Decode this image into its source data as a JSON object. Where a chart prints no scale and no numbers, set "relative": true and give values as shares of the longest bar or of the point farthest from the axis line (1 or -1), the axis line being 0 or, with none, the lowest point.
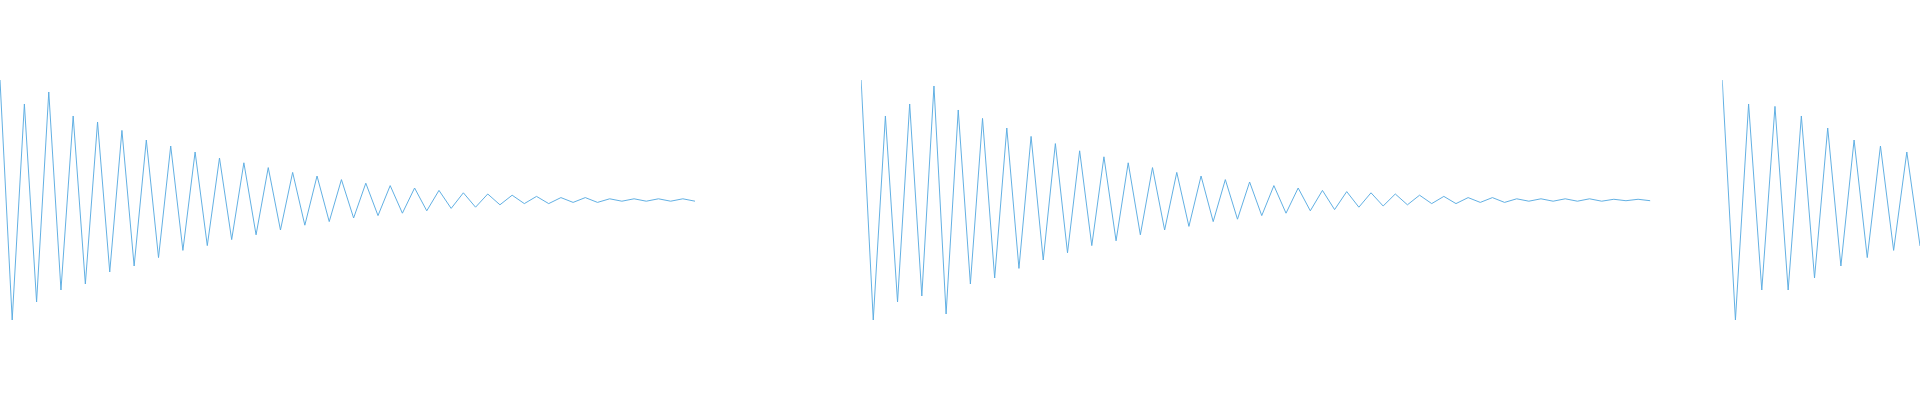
{
  "chart_data": [
    {
      "type": "line",
      "relative": true,
      "categories": [
        null,
        null,
        null,
        null,
        null,
        null,
        null,
        null,
        null,
        null,
        null,
        null,
        null,
        null,
        null,
        null,
        null,
        null,
        null,
        null,
        null,
        null,
        null,
        null,
        null,
        null,
        null,
        null,
        null,
        null,
        null,
        null,
        null,
        null,
        null,
        null,
        null,
        null,
        null,
        null,
        null,
        null,
        null,
        null,
        null,
        null,
        null,
        null,
        null,
        null,
        null,
        null,
        null,
        null,
        null,
        null,
        null,
        null
      ],
      "series": [
        {
          "color": "#5dade2",
          "values": [
            1,
            0,
            0.9,
            0.075,
            0.95,
            0.125,
            0.85,
            0.15,
            0.825,
            0.2,
            0.79,
            0.225,
            0.75,
            0.26,
            0.725,
            0.29,
            0.7,
            0.31,
            0.675,
            0.335,
            0.655,
            0.355,
            0.635,
            0.375,
            0.615,
            0.395,
            0.6,
            0.41,
            0.585,
            0.425,
            0.57,
            0.435,
            0.56,
            0.445,
            0.55,
            0.455,
            0.54,
            0.465,
            0.53,
            0.47,
            0.525,
            0.48,
            0.52,
            0.485,
            0.515,
            0.485,
            0.51,
            0.49,
            0.51,
            0.49,
            0.505,
            0.495,
            0.505,
            0.495,
            0.505,
            0.495,
            0.505,
            0.495
          ]
        }
      ]
    },
    {
      "type": "line",
      "relative": true,
      "categories": [
        null,
        null,
        null,
        null,
        null,
        null,
        null,
        null,
        null,
        null,
        null,
        null,
        null,
        null,
        null,
        null,
        null,
        null,
        null,
        null,
        null,
        null,
        null,
        null,
        null,
        null,
        null,
        null,
        null,
        null,
        null,
        null,
        null,
        null,
        null,
        null,
        null,
        null,
        null,
        null,
        null,
        null,
        null,
        null,
        null,
        null,
        null,
        null,
        null,
        null,
        null,
        null,
        null,
        null,
        null,
        null,
        null,
        null,
        null,
        null,
        null,
        null,
        null,
        null,
        null,
        null
      ],
      "series": [
        {
          "color": "#5dade2",
          "values": [
            1,
            0,
            0.85,
            0.075,
            0.9,
            0.1,
            0.975,
            0.025,
            0.875,
            0.15,
            0.84,
            0.175,
            0.8,
            0.215,
            0.765,
            0.25,
            0.735,
            0.28,
            0.705,
            0.31,
            0.68,
            0.33,
            0.655,
            0.355,
            0.635,
            0.375,
            0.615,
            0.39,
            0.6,
            0.41,
            0.585,
            0.42,
            0.575,
            0.435,
            0.56,
            0.445,
            0.55,
            0.455,
            0.54,
            0.46,
            0.535,
            0.47,
            0.53,
            0.475,
            0.525,
            0.48,
            0.52,
            0.485,
            0.515,
            0.485,
            0.51,
            0.49,
            0.51,
            0.49,
            0.505,
            0.495,
            0.505,
            0.495,
            0.505,
            0.495,
            0.505,
            0.495,
            0.503,
            0.497,
            0.503,
            0.497
          ]
        }
      ]
    },
    {
      "type": "line",
      "relative": true,
      "categories": [
        null,
        null,
        null,
        null,
        null,
        null,
        null,
        null,
        null,
        null,
        null,
        null,
        null,
        null,
        null,
        null
      ],
      "series": [
        {
          "color": "#5dade2",
          "values": [
            1,
            0,
            0.9,
            0.125,
            0.89,
            0.125,
            0.85,
            0.175,
            0.8,
            0.225,
            0.75,
            0.26,
            0.725,
            0.29,
            0.7,
            0.31
          ]
        }
      ]
    }
  ]
}
